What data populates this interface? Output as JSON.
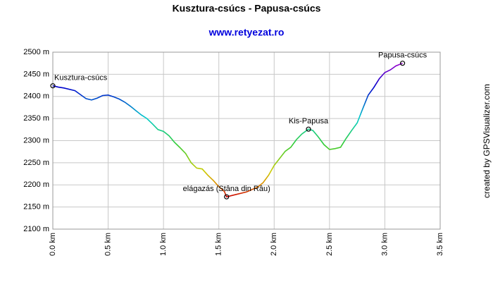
{
  "chart_data": {
    "type": "line",
    "title": "Kusztura-csúcs - Papusa-csúcs",
    "subtitle": "www.retyezat.ro",
    "credit": "created by GPSVisualizer.com",
    "xlim": [
      0,
      3.5
    ],
    "xticks": [
      {
        "value": 0,
        "label": "0.0 km"
      },
      {
        "value": 0.5,
        "label": "0.5 km"
      },
      {
        "value": 1,
        "label": "1.0 km"
      },
      {
        "value": 1.5,
        "label": "1.5 km"
      },
      {
        "value": 2,
        "label": "2.0 km"
      },
      {
        "value": 2.5,
        "label": "2.5 km"
      },
      {
        "value": 3,
        "label": "3.0 km"
      },
      {
        "value": 3.5,
        "label": "3.5 km"
      }
    ],
    "ylim": [
      2100,
      2500
    ],
    "yticks": [
      {
        "value": 2100,
        "label": "2100 m"
      },
      {
        "value": 2150,
        "label": "2150 m"
      },
      {
        "value": 2200,
        "label": "2200 m"
      },
      {
        "value": 2250,
        "label": "2250 m"
      },
      {
        "value": 2300,
        "label": "2300 m"
      },
      {
        "value": 2350,
        "label": "2350 m"
      },
      {
        "value": 2400,
        "label": "2400 m"
      },
      {
        "value": 2450,
        "label": "2450 m"
      },
      {
        "value": 2500,
        "label": "2500 m"
      }
    ],
    "grid": true,
    "x": [
      0,
      0.05,
      0.1,
      0.2,
      0.25,
      0.3,
      0.35,
      0.4,
      0.45,
      0.5,
      0.55,
      0.6,
      0.65,
      0.7,
      0.75,
      0.8,
      0.85,
      0.9,
      0.95,
      1,
      1.05,
      1.1,
      1.15,
      1.2,
      1.25,
      1.3,
      1.35,
      1.4,
      1.45,
      1.5,
      1.55,
      1.57,
      1.65,
      1.75,
      1.85,
      1.9,
      1.95,
      2,
      2.05,
      2.1,
      2.15,
      2.2,
      2.25,
      2.31,
      2.35,
      2.4,
      2.45,
      2.5,
      2.55,
      2.6,
      2.65,
      2.7,
      2.75,
      2.8,
      2.85,
      2.9,
      2.95,
      3,
      3.05,
      3.1,
      3.16
    ],
    "values": [
      2424,
      2421,
      2419,
      2413,
      2404,
      2395,
      2392,
      2396,
      2402,
      2403,
      2399,
      2394,
      2387,
      2378,
      2368,
      2358,
      2350,
      2338,
      2325,
      2321,
      2311,
      2296,
      2284,
      2271,
      2250,
      2238,
      2236,
      2222,
      2210,
      2196,
      2185,
      2173,
      2178,
      2184,
      2195,
      2205,
      2222,
      2244,
      2260,
      2276,
      2285,
      2302,
      2315,
      2326,
      2323,
      2308,
      2291,
      2280,
      2282,
      2285,
      2305,
      2323,
      2340,
      2372,
      2403,
      2420,
      2440,
      2454,
      2460,
      2469,
      2475
    ],
    "waypoints": [
      {
        "name": "Kusztura-csúcs",
        "x": 0,
        "y": 2424
      },
      {
        "name": "elágazás (Stâna din Râu)",
        "x": 1.57,
        "y": 2173
      },
      {
        "name": "Kis-Papusa",
        "x": 2.31,
        "y": 2326
      },
      {
        "name": "Papusa-csúcs",
        "x": 3.16,
        "y": 2475
      }
    ]
  }
}
